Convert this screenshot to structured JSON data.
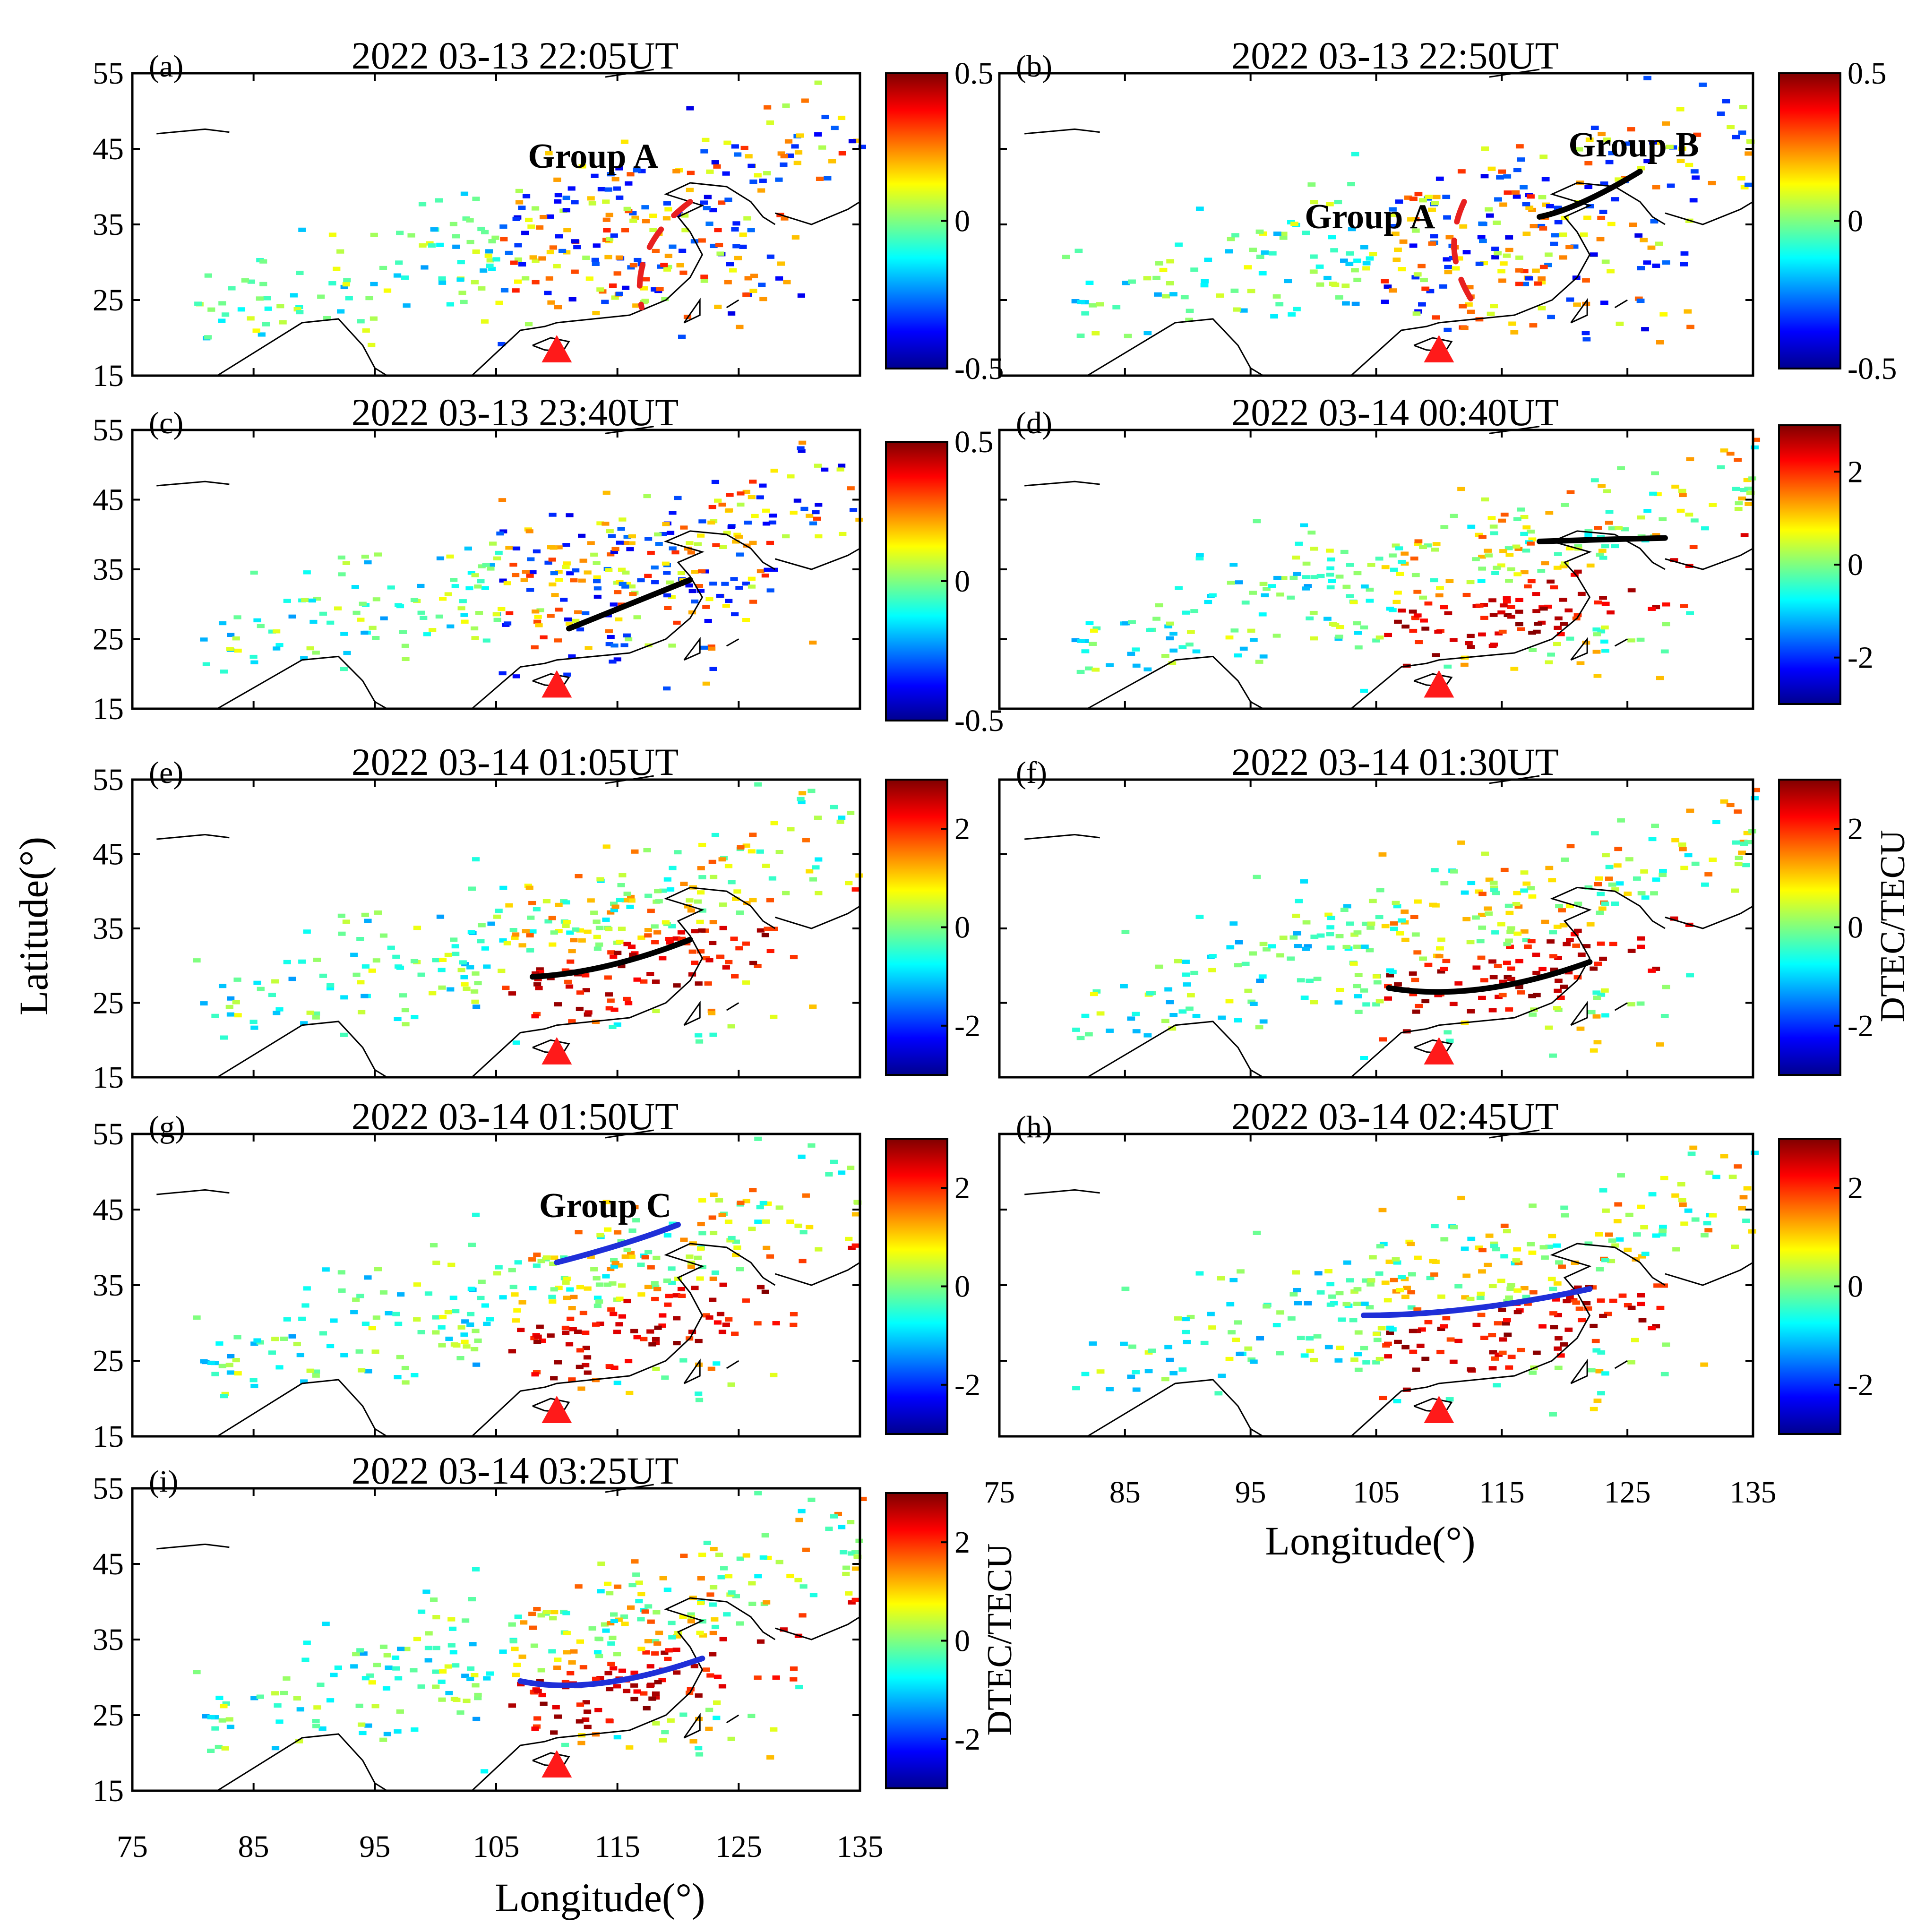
{
  "figure": {
    "x_axis_label": "Longitude(°)",
    "y_axis_label": "Latitude(°)",
    "colorbar_label": "DTEC/TECU",
    "lon_ticks": [
      "75",
      "85",
      "95",
      "105",
      "115",
      "125",
      "135"
    ],
    "lat_ticks": [
      "15",
      "25",
      "35",
      "45",
      "55"
    ],
    "marker_color": "#ff1a1a"
  },
  "chart_data": [
    {
      "type": "heatmap",
      "panel": "(a)",
      "title": "2022 03-13 22:05UT",
      "clim": [
        -0.5,
        0.5
      ],
      "cbar_ticks": [
        "0.5",
        "0",
        "-0.5"
      ],
      "annotations": [
        {
          "text": "Group A"
        }
      ],
      "front": {
        "style": "dashed",
        "color": "#e8201f",
        "points": [
          [
            121,
            38
          ],
          [
            116,
            32
          ],
          [
            117,
            24
          ]
        ]
      }
    },
    {
      "type": "heatmap",
      "panel": "(b)",
      "title": "2022 03-13 22:50UT",
      "clim": [
        -0.5,
        0.5
      ],
      "cbar_ticks": [
        "0.5",
        "0",
        "-0.5"
      ],
      "annotations": [
        {
          "text": "Group A"
        },
        {
          "text": "Group B"
        }
      ],
      "front": {
        "style": "solid",
        "color": "#000000",
        "points": [
          [
            118,
            36
          ],
          [
            121,
            37
          ],
          [
            126,
            42
          ]
        ]
      },
      "front2": {
        "style": "dashed",
        "color": "#e8201f",
        "points": [
          [
            112,
            38
          ],
          [
            110,
            31
          ],
          [
            113,
            24
          ]
        ]
      }
    },
    {
      "type": "heatmap",
      "panel": "(c)",
      "title": "2022 03-13 23:40UT",
      "clim": [
        -0.5,
        0.5
      ],
      "cbar_ticks": [
        "0.5",
        "0",
        "-0.5"
      ],
      "annotations": [],
      "front": {
        "style": "solid",
        "color": "#000000",
        "points": [
          [
            111,
            26.5
          ],
          [
            116,
            30
          ],
          [
            121,
            33.5
          ]
        ]
      }
    },
    {
      "type": "heatmap",
      "panel": "(d)",
      "title": "2022 03-14 00:40UT",
      "clim": [
        -3,
        3
      ],
      "cbar_ticks": [
        "2",
        "0",
        "-2"
      ],
      "annotations": [],
      "front": {
        "style": "solid",
        "color": "#000000",
        "points": [
          [
            118,
            39
          ],
          [
            123,
            39.3
          ],
          [
            128,
            39.5
          ]
        ]
      }
    },
    {
      "type": "heatmap",
      "panel": "(e)",
      "title": "2022 03-14 01:05UT",
      "clim": [
        -3,
        3
      ],
      "cbar_ticks": [
        "2",
        "0",
        "-2"
      ],
      "annotations": [],
      "front": {
        "style": "solid",
        "color": "#000000",
        "points": [
          [
            108,
            28.5
          ],
          [
            114,
            29
          ],
          [
            121,
            33.5
          ]
        ]
      }
    },
    {
      "type": "heatmap",
      "panel": "(f)",
      "title": "2022 03-14 01:30UT",
      "clim": [
        -3,
        3
      ],
      "cbar_ticks": [
        "2",
        "0",
        "-2"
      ],
      "annotations": [],
      "front": {
        "style": "solid",
        "color": "#000000",
        "points": [
          [
            106,
            27
          ],
          [
            113,
            25
          ],
          [
            122,
            30.5
          ]
        ]
      }
    },
    {
      "type": "heatmap",
      "panel": "(g)",
      "title": "2022 03-14 01:50UT",
      "clim": [
        -3,
        3
      ],
      "cbar_ticks": [
        "2",
        "0",
        "-2"
      ],
      "annotations": [
        {
          "text": "Group C"
        }
      ],
      "front": {
        "style": "solid",
        "color": "#1f2fd8",
        "points": [
          [
            110,
            38
          ],
          [
            116,
            40.5
          ],
          [
            120,
            43
          ]
        ]
      }
    },
    {
      "type": "heatmap",
      "panel": "(h)",
      "title": "2022 03-14 02:45UT",
      "clim": [
        -3,
        3
      ],
      "cbar_ticks": [
        "2",
        "0",
        "-2"
      ],
      "annotations": [],
      "front": {
        "style": "solid",
        "color": "#1f2fd8",
        "points": [
          [
            104,
            31
          ],
          [
            112,
            31
          ],
          [
            122,
            34.5
          ]
        ]
      }
    },
    {
      "type": "heatmap",
      "panel": "(i)",
      "title": "2022 03-14 03:25UT",
      "clim": [
        -3,
        3
      ],
      "cbar_ticks": [
        "2",
        "0",
        "-2"
      ],
      "annotations": [],
      "front": {
        "style": "solid",
        "color": "#1f2fd8",
        "points": [
          [
            107,
            29.5
          ],
          [
            113,
            27.5
          ],
          [
            122,
            32.5
          ]
        ]
      }
    }
  ]
}
